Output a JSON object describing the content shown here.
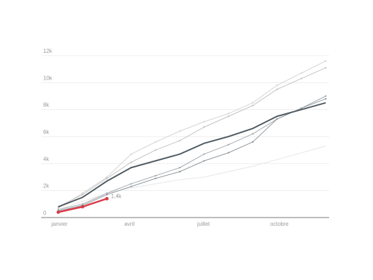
{
  "chart_data": {
    "type": "line",
    "categories": [
      "janvier",
      null,
      null,
      "avril",
      null,
      null,
      "juillet",
      null,
      null,
      "octobre",
      null,
      null
    ],
    "ylim": [
      0,
      12000
    ],
    "yticks": [
      0,
      {
        "value": 2000,
        "label": "2k"
      },
      {
        "value": 4000,
        "label": "4k"
      },
      {
        "value": 6000,
        "label": "6k"
      },
      {
        "value": 8000,
        "label": "8k"
      },
      {
        "value": 10000,
        "label": "10k"
      },
      {
        "value": 12000,
        "label": "12k"
      }
    ],
    "grid": true,
    "series": [
      {
        "color": "#e6e6e6",
        "markers": false,
        "width": 1,
        "values": [
          600,
          1200,
          1800,
          2200,
          2500,
          2800,
          3000,
          3400,
          3800,
          4300,
          4800,
          5300
        ]
      },
      {
        "color": "#d4d4d4",
        "markers": true,
        "width": 1,
        "values": [
          700,
          1800,
          3000,
          4700,
          5600,
          6400,
          7100,
          7700,
          8500,
          9800,
          10700,
          11600
        ]
      },
      {
        "color": "#c2c2c2",
        "markers": true,
        "width": 1,
        "values": [
          800,
          1700,
          2900,
          4100,
          5000,
          5700,
          6700,
          7500,
          8300,
          9500,
          10300,
          11100
        ]
      },
      {
        "color": "#a3a9ad",
        "markers": true,
        "width": 1,
        "values": [
          600,
          1000,
          1800,
          2500,
          3100,
          3700,
          4700,
          5400,
          6200,
          7300,
          8100,
          9000
        ]
      },
      {
        "color": "#8e979c",
        "markers": true,
        "width": 1,
        "values": [
          500,
          900,
          1700,
          2300,
          2900,
          3400,
          4200,
          4800,
          5600,
          7300,
          8100,
          8800
        ]
      },
      {
        "color": "#4f5a61",
        "markers": false,
        "width": 2,
        "values": [
          800,
          1500,
          2700,
          3700,
          4200,
          4700,
          5500,
          6000,
          6600,
          7500,
          8000,
          8500
        ]
      },
      {
        "color": "#d93a49",
        "markers": true,
        "width": 2.5,
        "values": [
          400,
          800,
          1400,
          null,
          null,
          null,
          null,
          null,
          null,
          null,
          null,
          null
        ],
        "value_labels": [
          null,
          null,
          "1,4k",
          null,
          null,
          null,
          null,
          null,
          null,
          null,
          null,
          null
        ]
      }
    ]
  }
}
